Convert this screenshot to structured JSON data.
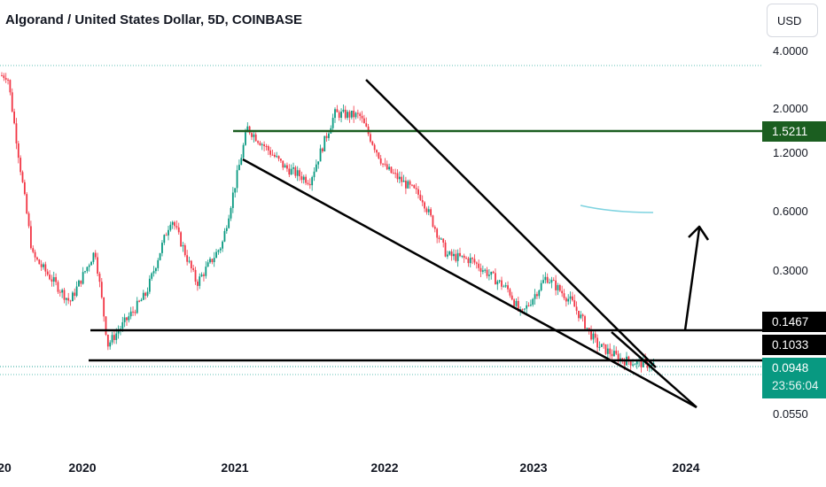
{
  "header": {
    "symbol_title": "Algorand / United States Dollar, 5D, COINBASE",
    "currency_button": "USD"
  },
  "price_axis": {
    "ticks": [
      "4.0000",
      "2.0000",
      "1.2000",
      "0.6000",
      "0.3000",
      "0.0550"
    ]
  },
  "time_axis": {
    "labels": [
      "20",
      "2020",
      "2021",
      "2022",
      "2023",
      "2024"
    ]
  },
  "price_tags": {
    "resistance_green": "1.5211",
    "level_upper": "0.1467",
    "level_lower": "0.1033",
    "last_price": "0.0948",
    "countdown": "23:56:04"
  },
  "colors": {
    "up_candle": "#089981",
    "down_candle": "#f23645",
    "drawing_black": "#000000",
    "resistance_green": "#1b5e20",
    "price_line": "#26a69a",
    "dotted_line": "#5fbfb5",
    "brush_stroke": "#7ed3e0",
    "background": "#ffffff"
  },
  "chart_data": {
    "type": "candlestick",
    "instrument": "Algorand / United States Dollar",
    "interval": "5D",
    "exchange": "COINBASE",
    "currency": "USD",
    "y_scale": "log",
    "ylim": [
      0.045,
      4.5
    ],
    "x_ticks": [
      "2020",
      "2021",
      "2022",
      "2023",
      "2024"
    ],
    "y_ticks": [
      4.0,
      2.0,
      1.2,
      0.6,
      0.3,
      0.055
    ],
    "horizontal_levels": [
      1.5211,
      0.1467,
      0.1033
    ],
    "last_price": 0.0948,
    "approx_closes": [
      {
        "date": "2019-07",
        "close": 3.0
      },
      {
        "date": "2019-09",
        "close": 0.35
      },
      {
        "date": "2019-12",
        "close": 0.2
      },
      {
        "date": "2020-02",
        "close": 0.37
      },
      {
        "date": "2020-03",
        "close": 0.12
      },
      {
        "date": "2020-06",
        "close": 0.22
      },
      {
        "date": "2020-08",
        "close": 0.55
      },
      {
        "date": "2020-10",
        "close": 0.25
      },
      {
        "date": "2020-12",
        "close": 0.4
      },
      {
        "date": "2021-02",
        "close": 1.6
      },
      {
        "date": "2021-05",
        "close": 1.0
      },
      {
        "date": "2021-07",
        "close": 0.85
      },
      {
        "date": "2021-09",
        "close": 1.9
      },
      {
        "date": "2021-11",
        "close": 1.85
      },
      {
        "date": "2022-01",
        "close": 1.0
      },
      {
        "date": "2022-04",
        "close": 0.7
      },
      {
        "date": "2022-06",
        "close": 0.35
      },
      {
        "date": "2022-08",
        "close": 0.33
      },
      {
        "date": "2022-11",
        "close": 0.23
      },
      {
        "date": "2022-12",
        "close": 0.17
      },
      {
        "date": "2023-02",
        "close": 0.27
      },
      {
        "date": "2023-04",
        "close": 0.2
      },
      {
        "date": "2023-06",
        "close": 0.12
      },
      {
        "date": "2023-08",
        "close": 0.1
      },
      {
        "date": "2023-10",
        "close": 0.0948
      }
    ]
  }
}
